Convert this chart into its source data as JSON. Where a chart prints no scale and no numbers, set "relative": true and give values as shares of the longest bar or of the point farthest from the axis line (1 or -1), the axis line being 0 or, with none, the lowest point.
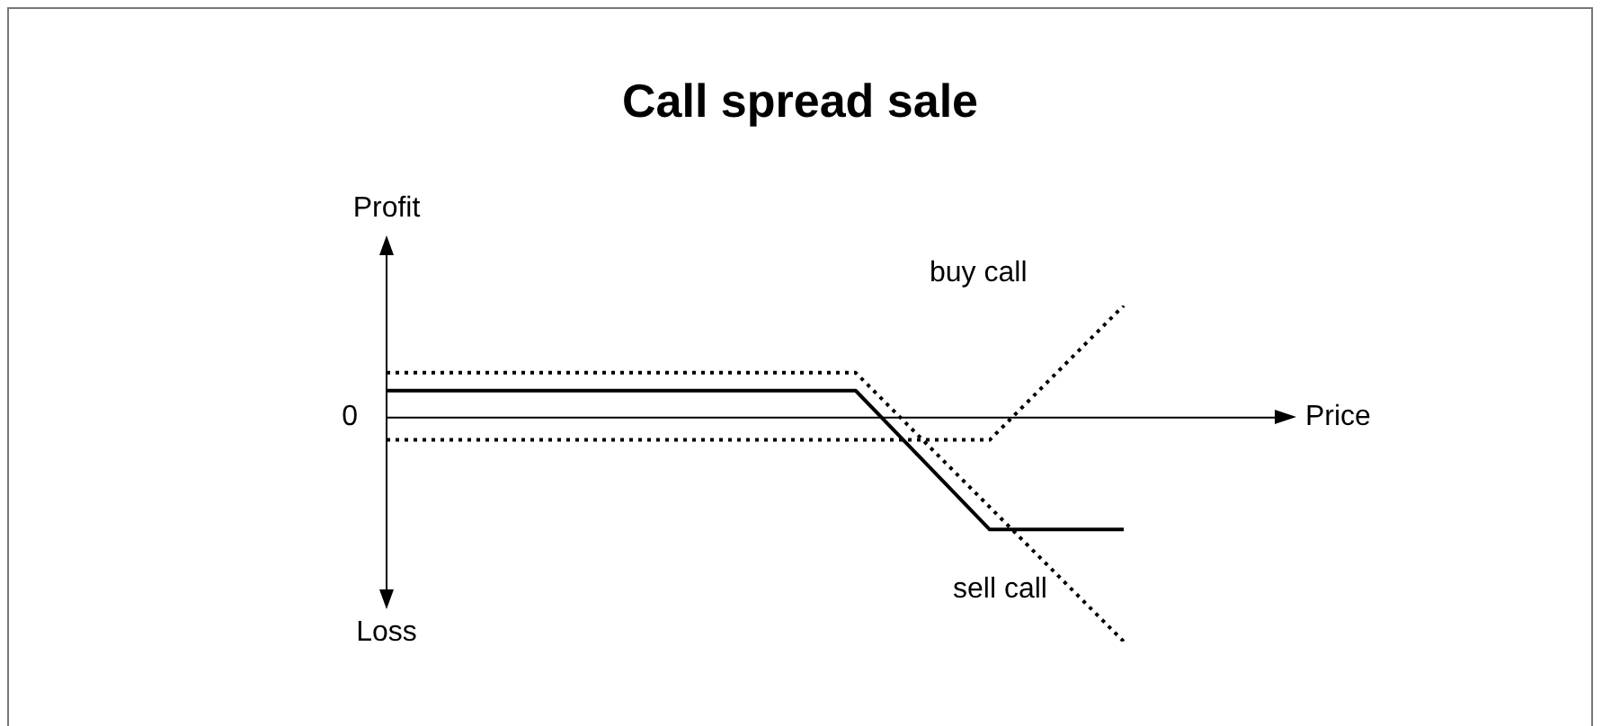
{
  "chart_data": {
    "type": "line",
    "title": "Call spread sale",
    "ylabel": "Profit",
    "relative": true,
    "annotations": [
      "0",
      "Price",
      "Loss"
    ],
    "categories": [
      null,
      null,
      null,
      null,
      null,
      null,
      null,
      null,
      null,
      null,
      null,
      null
    ],
    "series": [
      {
        "color": "#000000",
        "line_style": "solid",
        "values": [
          0.12,
          null,
          null,
          null,
          null,
          null,
          null,
          0.12,
          null,
          -0.5,
          null,
          -0.5
        ]
      },
      {
        "name": "sell call",
        "color": "#000000",
        "line_style": "dotted",
        "values": [
          0.2,
          null,
          null,
          null,
          null,
          null,
          null,
          0.2,
          null,
          null,
          null,
          -1
        ]
      },
      {
        "name": "buy call",
        "color": "#000000",
        "line_style": "dotted",
        "values": [
          -0.1,
          null,
          null,
          null,
          null,
          null,
          null,
          null,
          null,
          -0.1,
          null,
          0.5
        ]
      }
    ]
  }
}
